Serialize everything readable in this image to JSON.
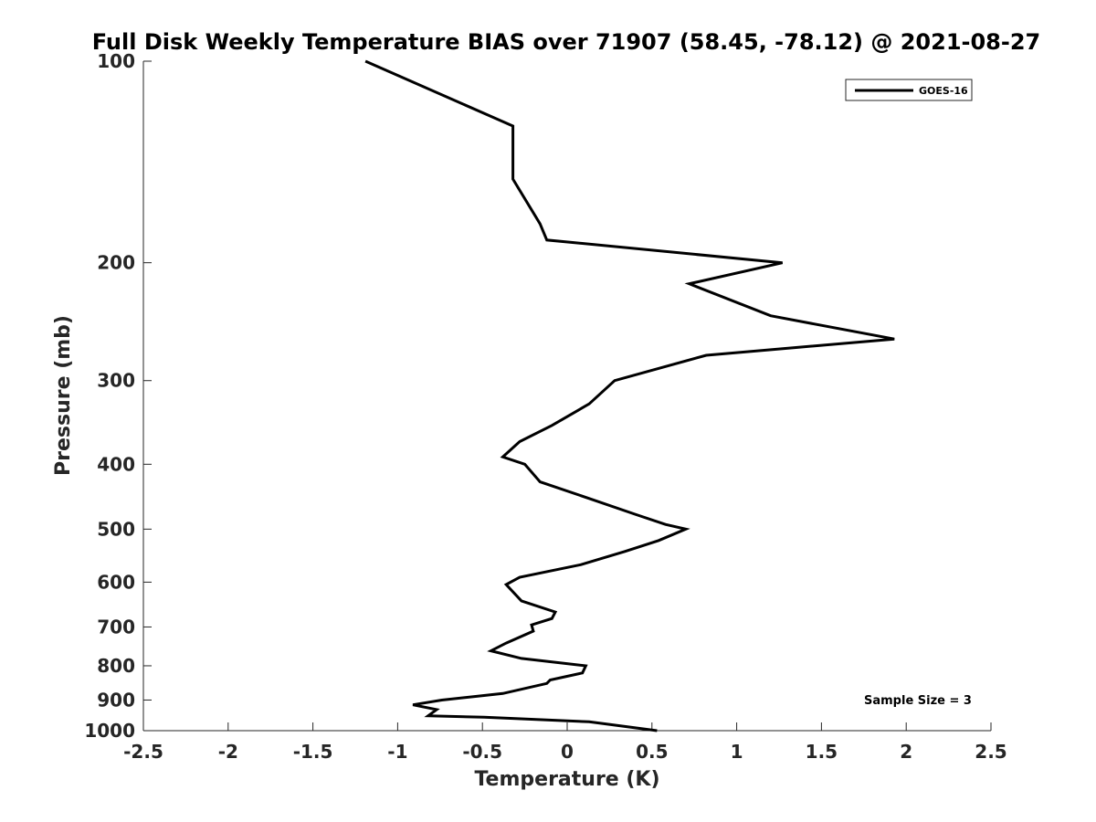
{
  "chart_data": {
    "type": "line",
    "title": "Full Disk Weekly Temperature BIAS over 71907 (58.45, -78.12) @ 2021-08-27",
    "xlabel": "Temperature (K)",
    "ylabel": "Pressure (mb)",
    "xlim": [
      -2.5,
      2.5
    ],
    "ylim": [
      100,
      1000
    ],
    "y_scale": "log",
    "y_reversed": true,
    "grid": false,
    "legend_position": "top-right",
    "x_ticks": [
      -2.5,
      -2,
      -1.5,
      -1,
      -0.5,
      0,
      0.5,
      1,
      1.5,
      2,
      2.5
    ],
    "x_tick_labels": [
      "-2.5",
      "-2",
      "-1.5",
      "-1",
      "-0.5",
      "0",
      "0.5",
      "1",
      "1.5",
      "2",
      "2.5"
    ],
    "y_ticks": [
      100,
      200,
      300,
      400,
      500,
      600,
      700,
      800,
      900,
      1000
    ],
    "y_tick_labels": [
      "100",
      "200",
      "300",
      "400",
      "500",
      "600",
      "700",
      "800",
      "900",
      "1000"
    ],
    "series": [
      {
        "name": "GOES-16",
        "color": "#000000",
        "points": [
          [
            -1.19,
            100
          ],
          [
            -0.32,
            125
          ],
          [
            -0.32,
            150
          ],
          [
            -0.16,
            175
          ],
          [
            -0.12,
            185
          ],
          [
            1.27,
            200
          ],
          [
            0.72,
            215
          ],
          [
            1.2,
            240
          ],
          [
            1.93,
            260
          ],
          [
            0.82,
            275
          ],
          [
            0.28,
            300
          ],
          [
            0.13,
            325
          ],
          [
            -0.09,
            350
          ],
          [
            -0.28,
            370
          ],
          [
            -0.38,
            390
          ],
          [
            -0.25,
            400
          ],
          [
            -0.16,
            425
          ],
          [
            0.13,
            450
          ],
          [
            0.4,
            475
          ],
          [
            0.58,
            492
          ],
          [
            0.7,
            500
          ],
          [
            0.54,
            520
          ],
          [
            0.34,
            540
          ],
          [
            0.08,
            565
          ],
          [
            -0.28,
            590
          ],
          [
            -0.36,
            605
          ],
          [
            -0.27,
            640
          ],
          [
            -0.07,
            665
          ],
          [
            -0.09,
            680
          ],
          [
            -0.21,
            695
          ],
          [
            -0.2,
            710
          ],
          [
            -0.36,
            740
          ],
          [
            -0.45,
            760
          ],
          [
            -0.27,
            780
          ],
          [
            0.11,
            800
          ],
          [
            0.09,
            820
          ],
          [
            -0.1,
            840
          ],
          [
            -0.12,
            850
          ],
          [
            -0.38,
            880
          ],
          [
            -0.74,
            900
          ],
          [
            -0.91,
            915
          ],
          [
            -0.77,
            930
          ],
          [
            -0.82,
            950
          ],
          [
            -0.49,
            955
          ],
          [
            0.13,
            970
          ],
          [
            0.53,
            1000
          ]
        ]
      }
    ],
    "annotations": [
      {
        "text": "Sample Size = 3"
      }
    ]
  }
}
